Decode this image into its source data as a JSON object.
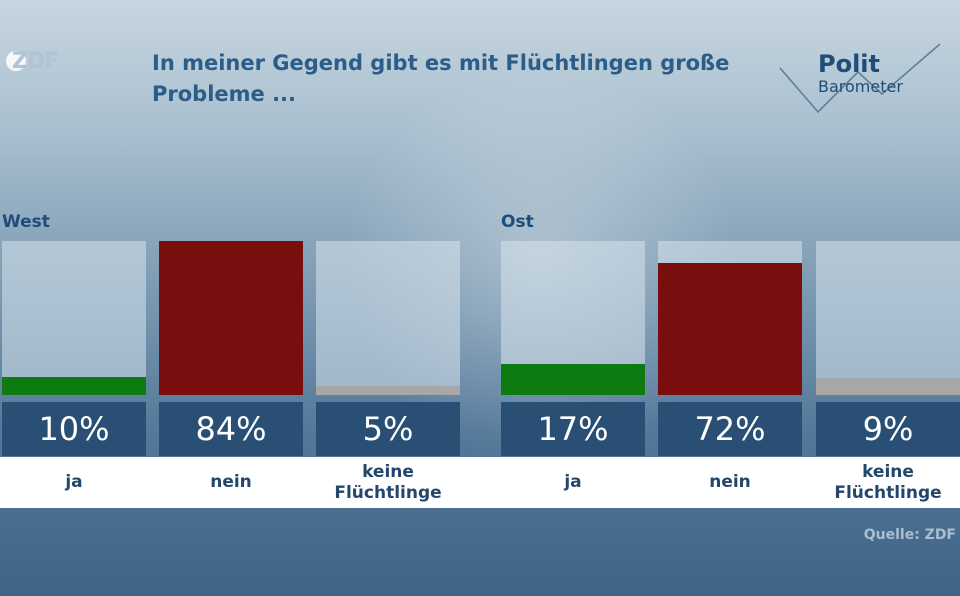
{
  "logo": {
    "text": "ZDF"
  },
  "title": "In meiner Gegend gibt es mit Flüchtlingen große Probleme ...",
  "brand": {
    "line1": "Polit",
    "line2": "Barometer"
  },
  "source": "Quelle: ZDF",
  "colors": {
    "ja": "#0e7a12",
    "nein": "#7a0d0d",
    "keine": "#a7a7a7",
    "label_bg": "#2a4f74"
  },
  "chart_data": [
    {
      "type": "bar",
      "title": "West",
      "categories": [
        "ja",
        "nein",
        "keine Flüchtlinge"
      ],
      "values": [
        10,
        84,
        5
      ],
      "value_labels": [
        "10%",
        "84%",
        "5%"
      ],
      "ylim": [
        0,
        84
      ]
    },
    {
      "type": "bar",
      "title": "Ost",
      "categories": [
        "ja",
        "nein",
        "keine Flüchtlinge"
      ],
      "values": [
        17,
        72,
        9
      ],
      "value_labels": [
        "17%",
        "72%",
        "9%"
      ],
      "ylim": [
        0,
        84
      ]
    }
  ]
}
